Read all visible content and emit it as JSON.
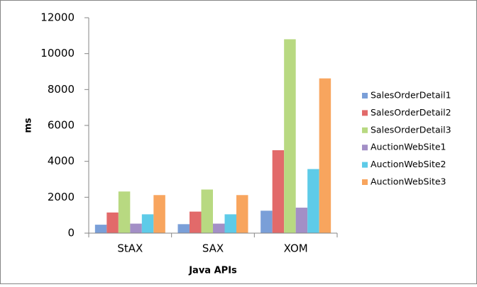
{
  "chart_data": {
    "type": "bar",
    "categories": [
      "StAX",
      "SAX",
      "XOM"
    ],
    "series": [
      {
        "name": "SalesOrderDetail1",
        "color": "#7a9fd8",
        "values": [
          470,
          500,
          1250
        ]
      },
      {
        "name": "SalesOrderDetail2",
        "color": "#e26a6a",
        "values": [
          1150,
          1200,
          4620
        ]
      },
      {
        "name": "SalesOrderDetail3",
        "color": "#b8d981",
        "values": [
          2320,
          2430,
          10800
        ]
      },
      {
        "name": "AuctionWebSite1",
        "color": "#a38fc6",
        "values": [
          530,
          530,
          1420
        ]
      },
      {
        "name": "AuctionWebSite2",
        "color": "#5ecbe8",
        "values": [
          1050,
          1050,
          3570
        ]
      },
      {
        "name": "AuctionWebSite3",
        "color": "#f8a55e",
        "values": [
          2120,
          2120,
          8620
        ]
      }
    ],
    "ylim": [
      0,
      12000
    ],
    "yticks": [
      0,
      2000,
      4000,
      6000,
      8000,
      10000,
      12000
    ],
    "ylabel": "ms",
    "xlabel": "Java APIs",
    "legend": "right",
    "grid": false
  }
}
